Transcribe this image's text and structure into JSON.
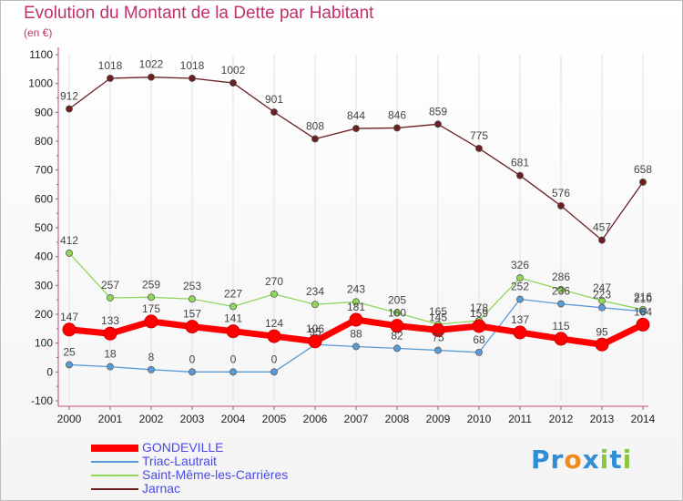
{
  "header": {
    "title": "Evolution du Montant de la Dette par Habitant",
    "unit": "(en €)"
  },
  "logo": {
    "text": "Proxiti",
    "letters": [
      {
        "ch": "P",
        "color": "#2f8fd6"
      },
      {
        "ch": "r",
        "color": "#2f8fd6"
      },
      {
        "ch": "o",
        "color": "#f08a1c"
      },
      {
        "ch": "x",
        "color": "#2f8fd6"
      },
      {
        "ch": "i",
        "color": "#8cc63f"
      },
      {
        "ch": "t",
        "color": "#2f8fd6"
      },
      {
        "ch": "i",
        "color": "#8cc63f"
      }
    ]
  },
  "chart_data": {
    "type": "line",
    "title": "Evolution du Montant de la Dette par Habitant",
    "ylabel": "(en €)",
    "xlabel": "",
    "x": [
      "2000",
      "2001",
      "2002",
      "2003",
      "2004",
      "2005",
      "2006",
      "2007",
      "2008",
      "2009",
      "2010",
      "2011",
      "2012",
      "2013",
      "2014"
    ],
    "ylim": [
      -100,
      1100
    ],
    "yticks": [
      -100,
      0,
      100,
      200,
      300,
      400,
      500,
      600,
      700,
      800,
      900,
      1000,
      1100
    ],
    "grid": "vertical",
    "legend": "bottom-left",
    "series": [
      {
        "name": "GONDEVILLE",
        "color": "#ff0000",
        "values": [
          147,
          133,
          175,
          157,
          141,
          124,
          106,
          181,
          160,
          145,
          159,
          137,
          115,
          95,
          164
        ]
      },
      {
        "name": "Triac-Lautrait",
        "color": "#5a9bd5",
        "values": [
          25,
          18,
          8,
          0,
          0,
          0,
          95,
          88,
          82,
          75,
          68,
          252,
          236,
          223,
          210
        ]
      },
      {
        "name": "Saint-Même-les-Carrières",
        "color": "#8fd65a",
        "values": [
          412,
          257,
          259,
          253,
          227,
          270,
          234,
          243,
          205,
          165,
          178,
          326,
          286,
          247,
          216
        ]
      },
      {
        "name": "Jarnac",
        "color": "#6b1f22",
        "values": [
          912,
          1018,
          1022,
          1018,
          1002,
          901,
          808,
          844,
          846,
          859,
          775,
          681,
          576,
          457,
          658
        ]
      }
    ]
  }
}
